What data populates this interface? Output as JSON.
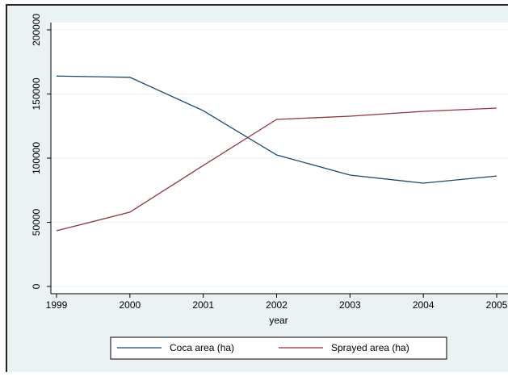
{
  "chart_data": {
    "type": "line",
    "x": [
      1999,
      2000,
      2001,
      2002,
      2003,
      2004,
      2005
    ],
    "xlabel": "year",
    "xlim": [
      1999,
      2005
    ],
    "xticks": [
      1999,
      2000,
      2001,
      2002,
      2003,
      2004,
      2005
    ],
    "ylim": [
      0,
      200000
    ],
    "yticks": [
      0,
      50000,
      100000,
      150000,
      200000
    ],
    "grid": true,
    "legend": "bottom",
    "series": [
      {
        "name": "Coca area (ha)",
        "color": "#1a476f",
        "values": [
          164000,
          163000,
          137000,
          102500,
          86800,
          80500,
          86100
        ]
      },
      {
        "name": "Sprayed area (ha)",
        "color": "#90353b",
        "values": [
          43400,
          57900,
          94300,
          130200,
          132700,
          136500,
          139000
        ]
      }
    ]
  }
}
